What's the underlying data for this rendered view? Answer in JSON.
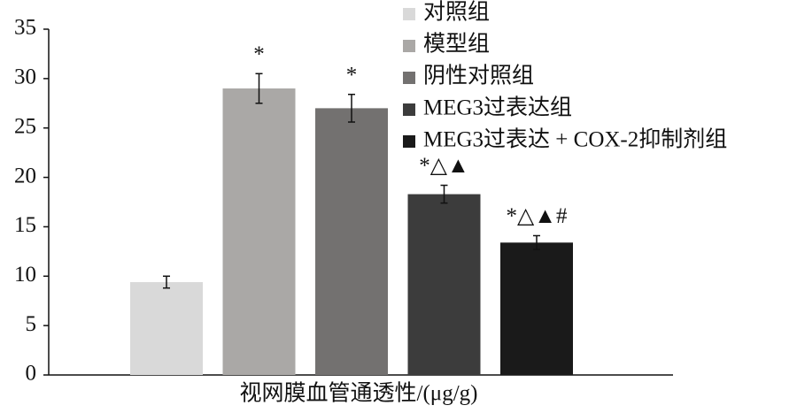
{
  "chart_data": {
    "type": "bar",
    "categories": [
      null
    ],
    "xlabel": "视网膜血管通透性/(μg/g)",
    "series": [
      {
        "name": "对照组",
        "color": "#d9d9d9",
        "values": [
          9.4
        ],
        "errors": [
          0.6
        ],
        "annotation": null
      },
      {
        "name": "模型组",
        "color": "#aaa8a6",
        "values": [
          29.0
        ],
        "errors": [
          1.5
        ],
        "annotation": "*"
      },
      {
        "name": "阴性对照组",
        "color": "#737170",
        "values": [
          27.0
        ],
        "errors": [
          1.4
        ],
        "annotation": "*"
      },
      {
        "name": "MEG3过表达组",
        "color": "#3c3c3c",
        "values": [
          18.3
        ],
        "errors": [
          0.9
        ],
        "annotation": "*△▲"
      },
      {
        "name": "MEG3过表达 + COX-2抑制剂组",
        "color": "#1a1a1a",
        "values": [
          13.4
        ],
        "errors": [
          0.7
        ],
        "annotation": "*△▲#"
      }
    ],
    "ylim": [
      0,
      35
    ],
    "yticks": [
      0,
      5,
      10,
      15,
      20,
      25,
      30,
      35
    ],
    "grid": false,
    "legend": "top-right"
  }
}
